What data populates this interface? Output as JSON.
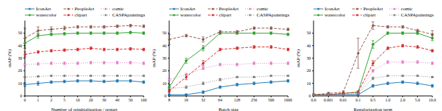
{
  "chart_data": [
    {
      "type": "line",
      "x_label": "Number of reinitialization / restart",
      "y_label": "mAP (%)",
      "legend": "top",
      "grid": false,
      "categories": [
        "0",
        "1",
        "2",
        "5",
        "10",
        "20",
        "30",
        "40",
        "50",
        "100"
      ],
      "ylim": [
        0,
        60
      ],
      "yticks": [
        0,
        10,
        20,
        30,
        40,
        50
      ],
      "series": [
        {
          "name": "IconArt",
          "color": "#1f77b4",
          "line_style": "solid",
          "marker": "circle",
          "values": [
            9,
            10,
            11,
            11.5,
            12,
            12,
            11.5,
            12,
            12,
            11
          ],
          "errors": [
            1.5,
            1.5,
            1,
            1,
            1,
            1,
            1,
            1,
            1,
            1
          ]
        },
        {
          "name": "watercolor",
          "color": "#2ca02c",
          "line_style": "solid",
          "marker": "circle",
          "values": [
            42,
            48,
            49,
            49.5,
            50,
            50,
            50,
            50,
            50.5,
            50
          ],
          "errors": [
            4,
            2,
            1,
            1,
            1,
            1,
            1,
            1,
            1,
            1
          ]
        },
        {
          "name": "PeopleArt",
          "color": "#8c564b",
          "line_style": "dashed",
          "marker": "circle",
          "values": [
            46,
            52,
            53,
            54,
            55,
            55,
            55,
            55.5,
            56,
            55.5
          ],
          "errors": [
            8,
            3,
            2,
            1.5,
            1,
            1,
            1,
            1,
            1,
            1
          ]
        },
        {
          "name": "clipart",
          "color": "#d62728",
          "line_style": "dashed",
          "marker": "circle",
          "values": [
            33,
            35,
            36,
            36.5,
            37,
            38,
            37,
            37,
            37.5,
            37
          ],
          "errors": [
            2,
            1,
            1,
            1,
            1,
            1,
            1,
            1,
            1,
            1
          ]
        },
        {
          "name": "comic",
          "color": "#e377c2",
          "line_style": "dotted",
          "marker": "circle",
          "values": [
            25,
            25.5,
            26,
            26,
            26,
            26.5,
            26.5,
            26.5,
            26.5,
            26
          ],
          "errors": [
            1,
            1,
            1,
            1,
            1,
            1,
            1,
            1,
            1,
            1
          ]
        },
        {
          "name": "CASPApaintings",
          "color": "#7f7f7f",
          "line_style": "dotted",
          "marker": "circle",
          "values": [
            15,
            15.5,
            16,
            16,
            16,
            16,
            16,
            16,
            16,
            16
          ],
          "errors": [
            0.5,
            0.5,
            0.5,
            0.5,
            0.5,
            0.5,
            0.5,
            0.5,
            0.5,
            0.5
          ]
        }
      ]
    },
    {
      "type": "line",
      "x_label": "Batch size",
      "y_label": "mAP (%)",
      "legend": "top",
      "grid": false,
      "categories": [
        "8",
        "16",
        "32",
        "64",
        "128",
        "256",
        "500",
        "1000"
      ],
      "ylim": [
        0,
        60
      ],
      "yticks": [
        0,
        10,
        20,
        30,
        40,
        50
      ],
      "series": [
        {
          "name": "IconArt",
          "color": "#1f77b4",
          "line_style": "solid",
          "marker": "circle",
          "values": [
            1,
            1,
            3,
            7,
            9,
            10,
            11,
            12
          ],
          "errors": [
            0.5,
            0.5,
            1,
            1,
            1,
            1,
            1,
            1
          ]
        },
        {
          "name": "watercolor",
          "color": "#2ca02c",
          "line_style": "solid",
          "marker": "circle",
          "values": [
            7,
            28,
            38,
            50,
            50,
            50,
            50,
            49
          ],
          "errors": [
            2,
            2,
            2,
            1,
            1,
            1,
            1,
            1
          ]
        },
        {
          "name": "PeopleArt",
          "color": "#8c564b",
          "line_style": "dashed",
          "marker": "circle",
          "values": [
            45,
            48,
            45,
            51,
            51,
            54,
            54,
            53
          ],
          "errors": [
            4,
            1,
            2,
            1,
            1,
            1,
            1,
            1
          ]
        },
        {
          "name": "clipart",
          "color": "#d62728",
          "line_style": "dashed",
          "marker": "circle",
          "values": [
            4,
            15,
            26,
            37,
            38,
            39,
            39,
            37
          ],
          "errors": [
            1,
            2,
            2,
            1,
            1,
            1,
            1,
            1
          ]
        },
        {
          "name": "comic",
          "color": "#e377c2",
          "line_style": "dotted",
          "marker": "circle",
          "values": [
            13,
            17,
            22,
            25,
            25,
            26,
            26,
            26
          ],
          "errors": [
            1,
            1,
            1,
            1,
            1,
            1,
            1,
            1
          ]
        },
        {
          "name": "CASPApaintings",
          "color": "#7f7f7f",
          "line_style": "dotted",
          "marker": "circle",
          "values": [
            6,
            7,
            10,
            13,
            15,
            15,
            16,
            16
          ],
          "errors": [
            1,
            1,
            1,
            1,
            0.5,
            0.5,
            0.5,
            0.5
          ]
        }
      ]
    },
    {
      "type": "line",
      "x_label": "Regularization term",
      "y_label": "mAP (%)",
      "legend": "top",
      "grid": false,
      "categories": [
        "0.0",
        "0.001",
        "0.01",
        "0.1",
        "0.5",
        "1.0",
        "2.0",
        "5.0",
        "10.0"
      ],
      "ylim": [
        0,
        60
      ],
      "yticks": [
        0,
        10,
        20,
        30,
        40,
        50
      ],
      "series": [
        {
          "name": "IconArt",
          "color": "#1f77b4",
          "line_style": "solid",
          "marker": "circle",
          "values": [
            1,
            1,
            1,
            1,
            8,
            10,
            11,
            10,
            8
          ],
          "errors": [
            0.5,
            0.5,
            0.5,
            0.5,
            1,
            1,
            1,
            1,
            1
          ]
        },
        {
          "name": "watercolor",
          "color": "#2ca02c",
          "line_style": "solid",
          "marker": "circle",
          "values": [
            1,
            1,
            2,
            3,
            41,
            50,
            50,
            50,
            46
          ],
          "errors": [
            0.5,
            0.5,
            0.5,
            1,
            3,
            1,
            1,
            1,
            2
          ]
        },
        {
          "name": "PeopleArt",
          "color": "#8c564b",
          "line_style": "dashed",
          "marker": "circle",
          "values": [
            1,
            2,
            3,
            34,
            56,
            55,
            55,
            52,
            49
          ],
          "errors": [
            0.5,
            1,
            1,
            12,
            3,
            1,
            1,
            1,
            3
          ]
        },
        {
          "name": "clipart",
          "color": "#d62728",
          "line_style": "dashed",
          "marker": "circle",
          "values": [
            1,
            1,
            2,
            3,
            26,
            38,
            40,
            39,
            36
          ],
          "errors": [
            0.5,
            0.5,
            0.5,
            1,
            2,
            1,
            1,
            1,
            1
          ]
        },
        {
          "name": "comic",
          "color": "#e377c2",
          "line_style": "dotted",
          "marker": "circle",
          "values": [
            1,
            1,
            1,
            2,
            20,
            27,
            27,
            27,
            26
          ],
          "errors": [
            0.5,
            0.5,
            0.5,
            0.5,
            1,
            1,
            1,
            1,
            1
          ]
        },
        {
          "name": "CASPApaintings",
          "color": "#7f7f7f",
          "line_style": "dotted",
          "marker": "circle",
          "values": [
            1,
            1,
            1,
            2,
            14,
            16,
            16,
            16,
            15
          ],
          "errors": [
            0.5,
            0.5,
            0.5,
            0.5,
            1,
            0.5,
            0.5,
            0.5,
            0.5
          ]
        }
      ]
    }
  ]
}
